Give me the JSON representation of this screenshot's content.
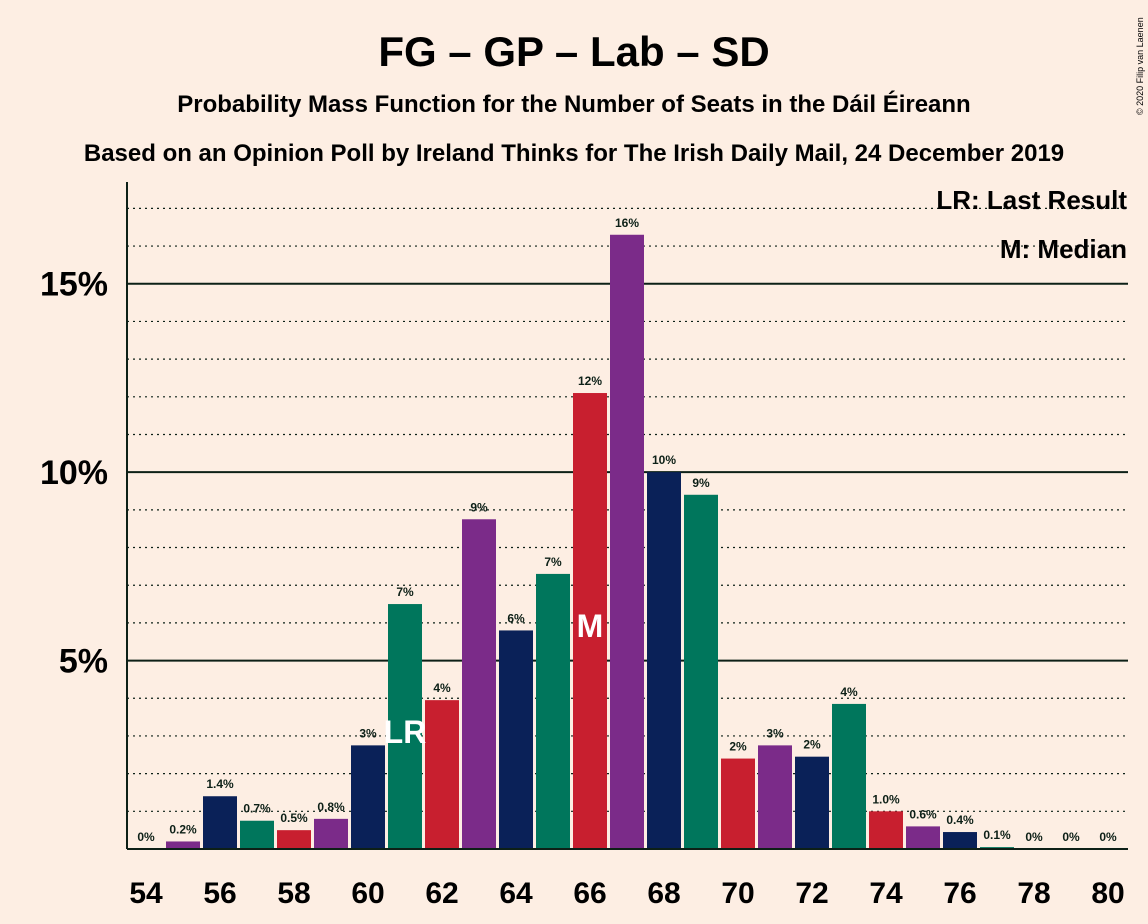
{
  "chart_data": {
    "type": "bar",
    "title": "FG – GP – Lab – SD",
    "subtitle": "Probability Mass Function for the Number of Seats in the Dáil Éireann",
    "subtitle2": "Based on an Opinion Poll by Ireland Thinks for The Irish Daily Mail, 24 December 2019",
    "copyright": "© 2020 Filip van Laenen",
    "legend": [
      "LR: Last Result",
      "M: Median"
    ],
    "legend_placement": "top-right",
    "x": [
      54,
      55,
      56,
      57,
      58,
      59,
      60,
      61,
      62,
      63,
      64,
      65,
      66,
      67,
      68,
      69,
      70,
      71,
      72,
      73,
      74,
      75,
      76,
      77,
      78,
      79,
      80
    ],
    "values": [
      0,
      0.2,
      1.4,
      0.75,
      0.5,
      0.8,
      2.75,
      6.5,
      3.95,
      8.75,
      5.8,
      7.3,
      12.1,
      16.3,
      10.0,
      9.4,
      2.4,
      2.75,
      2.45,
      3.85,
      1.0,
      0.6,
      0.45,
      0.05,
      0,
      0,
      0
    ],
    "labels": [
      "0%",
      "0.2%",
      "1.4%",
      "0.7%",
      "0.5%",
      "0.8%",
      "3%",
      "7%",
      "4%",
      "9%",
      "6%",
      "7%",
      "12%",
      "16%",
      "10%",
      "9%",
      "2%",
      "3%",
      "2%",
      "4%",
      "1.0%",
      "0.6%",
      "0.4%",
      "0.1%",
      "0%",
      "0%",
      "0%"
    ],
    "xticks": [
      "54",
      "56",
      "58",
      "60",
      "62",
      "64",
      "66",
      "68",
      "70",
      "72",
      "74",
      "76",
      "78",
      "80"
    ],
    "yticks": [
      {
        "v": 5,
        "label": "5%"
      },
      {
        "v": 10,
        "label": "10%"
      },
      {
        "v": 15,
        "label": "15%"
      }
    ],
    "ylim": [
      0,
      17.7
    ],
    "last_result_seat": 61,
    "last_result_label": "LR",
    "median_seat": 66,
    "median_label": "M",
    "palette": [
      "#0A2158",
      "#00765C",
      "#C81F2F",
      "#7B2B89"
    ],
    "grid": "dotted"
  }
}
